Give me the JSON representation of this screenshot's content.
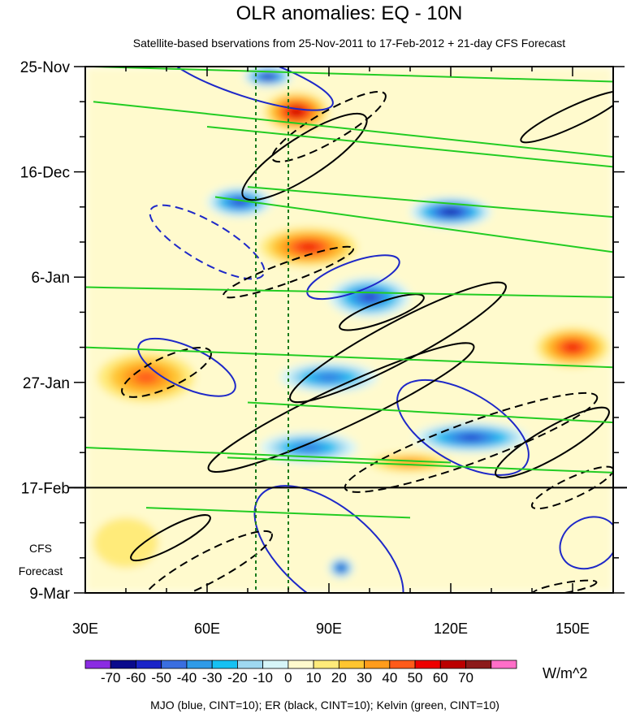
{
  "chart_data": {
    "type": "heatmap",
    "title": "OLR anomalies: EQ - 10N",
    "subtitle": "Satellite-based bservations from 25-Nov-2011 to 17-Feb-2012 + 21-day CFS Forecast",
    "x_ticks": [
      {
        "value": 30,
        "label": "30E"
      },
      {
        "value": 60,
        "label": "60E"
      },
      {
        "value": 90,
        "label": "90E"
      },
      {
        "value": 120,
        "label": "120E"
      },
      {
        "value": 150,
        "label": "150E"
      }
    ],
    "xlim": [
      30,
      160
    ],
    "ylim_days": [
      0,
      105
    ],
    "y_ticks": [
      {
        "day": 0,
        "label": "25-Nov"
      },
      {
        "day": 21,
        "label": "16-Dec"
      },
      {
        "day": 42,
        "label": "6-Jan"
      },
      {
        "day": 63,
        "label": "27-Jan"
      },
      {
        "day": 84,
        "label": "17-Feb"
      },
      {
        "day": 105,
        "label": "9-Mar"
      }
    ],
    "forecast_start_day": 84,
    "forecast_label_line1": "CFS",
    "forecast_label_line2": "Forecast",
    "reference_lines_lon": [
      72,
      80
    ],
    "colorbar": {
      "unit": "W/m^2",
      "labels": [
        "-70",
        "-60",
        "-50",
        "-40",
        "-30",
        "-20",
        "-10",
        "0",
        "10",
        "20",
        "30",
        "40",
        "50",
        "60",
        "70"
      ],
      "colors": [
        "#8a2be2",
        "#0a0a8c",
        "#1a24c8",
        "#3a6ee0",
        "#2f9be8",
        "#16c1f2",
        "#9fd8f0",
        "#d6f5f8",
        "#fffacd",
        "#ffeb7a",
        "#ffc530",
        "#ff9c1c",
        "#ff5a1a",
        "#ee0000",
        "#bb0000",
        "#8c1a1a",
        "#ff6ec8"
      ]
    },
    "anomaly_features": [
      {
        "lon": 75,
        "day": 2,
        "value": -70,
        "lon_r": 6,
        "day_r": 2
      },
      {
        "lon": 82,
        "day": 9,
        "value": 55,
        "lon_r": 8,
        "day_r": 4
      },
      {
        "lon": 68,
        "day": 27,
        "value": -60,
        "lon_r": 8,
        "day_r": 3
      },
      {
        "lon": 120,
        "day": 29,
        "value": -65,
        "lon_r": 10,
        "day_r": 3
      },
      {
        "lon": 85,
        "day": 36,
        "value": 50,
        "lon_r": 12,
        "day_r": 4
      },
      {
        "lon": 100,
        "day": 46,
        "value": -55,
        "lon_r": 10,
        "day_r": 4
      },
      {
        "lon": 150,
        "day": 56,
        "value": 50,
        "lon_r": 9,
        "day_r": 4
      },
      {
        "lon": 45,
        "day": 62,
        "value": 35,
        "lon_r": 12,
        "day_r": 5
      },
      {
        "lon": 90,
        "day": 62,
        "value": -50,
        "lon_r": 12,
        "day_r": 3
      },
      {
        "lon": 125,
        "day": 74,
        "value": -55,
        "lon_r": 14,
        "day_r": 3
      },
      {
        "lon": 85,
        "day": 76,
        "value": -50,
        "lon_r": 12,
        "day_r": 3
      },
      {
        "lon": 110,
        "day": 79,
        "value": 30,
        "lon_r": 10,
        "day_r": 2
      },
      {
        "lon": 93,
        "day": 100,
        "value": -70,
        "lon_r": 3,
        "day_r": 2
      },
      {
        "lon": 40,
        "day": 95,
        "value": 10,
        "lon_r": 8,
        "day_r": 5
      }
    ],
    "contour_legend": "MJO (blue, CINT=10); ER (black, CINT=10); Kelvin (green, CINT=10)",
    "contour_series": [
      {
        "name": "MJO",
        "color": "#1e28c8"
      },
      {
        "name": "ER",
        "color": "#000000"
      },
      {
        "name": "Kelvin",
        "color": "#22cc22"
      }
    ],
    "contours": [
      {
        "series": "MJO",
        "dashed": false,
        "lon": 123,
        "day": 72,
        "lon_r": 18,
        "day_r": 7,
        "rot": 30
      },
      {
        "series": "MJO",
        "dashed": false,
        "lon": 96,
        "day": 42,
        "lon_r": 12,
        "day_r": 3,
        "rot": -20
      },
      {
        "series": "MJO",
        "dashed": false,
        "lon": 55,
        "day": 60,
        "lon_r": 13,
        "day_r": 4,
        "rot": 25
      },
      {
        "series": "MJO",
        "dashed": false,
        "lon": 90,
        "day": 97,
        "lon_r": 22,
        "day_r": 9,
        "rot": 40
      },
      {
        "series": "MJO",
        "dashed": false,
        "lon": 70,
        "day": 2,
        "lon_r": 22,
        "day_r": 4,
        "rot": 18
      },
      {
        "series": "MJO",
        "dashed": false,
        "lon": 154,
        "day": 95,
        "lon_r": 6,
        "day_r": 6,
        "rot": 60
      },
      {
        "series": "MJO",
        "dashed": true,
        "lon": 60,
        "day": 35,
        "lon_r": 16,
        "day_r": 4,
        "rot": 30
      },
      {
        "series": "ER",
        "dashed": false,
        "lon": 84,
        "day": 18,
        "lon_r": 18,
        "day_r": 4,
        "rot": -33
      },
      {
        "series": "ER",
        "dashed": false,
        "lon": 107,
        "day": 55,
        "lon_r": 30,
        "day_r": 4,
        "rot": -28
      },
      {
        "series": "ER",
        "dashed": false,
        "lon": 93,
        "day": 68,
        "lon_r": 36,
        "day_r": 4,
        "rot": -25
      },
      {
        "series": "ER",
        "dashed": false,
        "lon": 145,
        "day": 75,
        "lon_r": 16,
        "day_r": 3,
        "rot": -30
      },
      {
        "series": "ER",
        "dashed": false,
        "lon": 51,
        "day": 94,
        "lon_r": 11,
        "day_r": 2,
        "rot": -28
      },
      {
        "series": "ER",
        "dashed": false,
        "lon": 103,
        "day": 49,
        "lon_r": 11,
        "day_r": 2,
        "rot": -20
      },
      {
        "series": "ER",
        "dashed": false,
        "lon": 150,
        "day": 10,
        "lon_r": 14,
        "day_r": 2,
        "rot": -25
      },
      {
        "series": "ER",
        "dashed": true,
        "lon": 90,
        "day": 12,
        "lon_r": 16,
        "day_r": 3,
        "rot": -30
      },
      {
        "series": "ER",
        "dashed": true,
        "lon": 80,
        "day": 41,
        "lon_r": 17,
        "day_r": 2,
        "rot": -20
      },
      {
        "series": "ER",
        "dashed": true,
        "lon": 50,
        "day": 61,
        "lon_r": 12,
        "day_r": 3,
        "rot": -25
      },
      {
        "series": "ER",
        "dashed": true,
        "lon": 125,
        "day": 75,
        "lon_r": 33,
        "day_r": 4,
        "rot": -20
      },
      {
        "series": "ER",
        "dashed": true,
        "lon": 60,
        "day": 100,
        "lon_r": 18,
        "day_r": 3,
        "rot": -28
      },
      {
        "series": "ER",
        "dashed": true,
        "lon": 150,
        "day": 84,
        "lon_r": 11,
        "day_r": 2,
        "rot": -25
      },
      {
        "series": "ER",
        "dashed": true,
        "lon": 148,
        "day": 104,
        "lon_r": 8,
        "day_r": 1,
        "rot": -10
      }
    ],
    "kelvin_lines": [
      {
        "lon1": 32,
        "day1": 0,
        "lon2": 160,
        "day2": 3
      },
      {
        "lon1": 32,
        "day1": 7,
        "lon2": 160,
        "day2": 18
      },
      {
        "lon1": 60,
        "day1": 12,
        "lon2": 160,
        "day2": 20
      },
      {
        "lon1": 70,
        "day1": 24,
        "lon2": 160,
        "day2": 30
      },
      {
        "lon1": 62,
        "day1": 26,
        "lon2": 160,
        "day2": 37
      },
      {
        "lon1": 30,
        "day1": 44,
        "lon2": 160,
        "day2": 46
      },
      {
        "lon1": 30,
        "day1": 56,
        "lon2": 160,
        "day2": 60
      },
      {
        "lon1": 70,
        "day1": 67,
        "lon2": 160,
        "day2": 71
      },
      {
        "lon1": 30,
        "day1": 76,
        "lon2": 120,
        "day2": 79
      },
      {
        "lon1": 65,
        "day1": 78,
        "lon2": 160,
        "day2": 81
      },
      {
        "lon1": 45,
        "day1": 88,
        "lon2": 110,
        "day2": 90
      }
    ]
  }
}
